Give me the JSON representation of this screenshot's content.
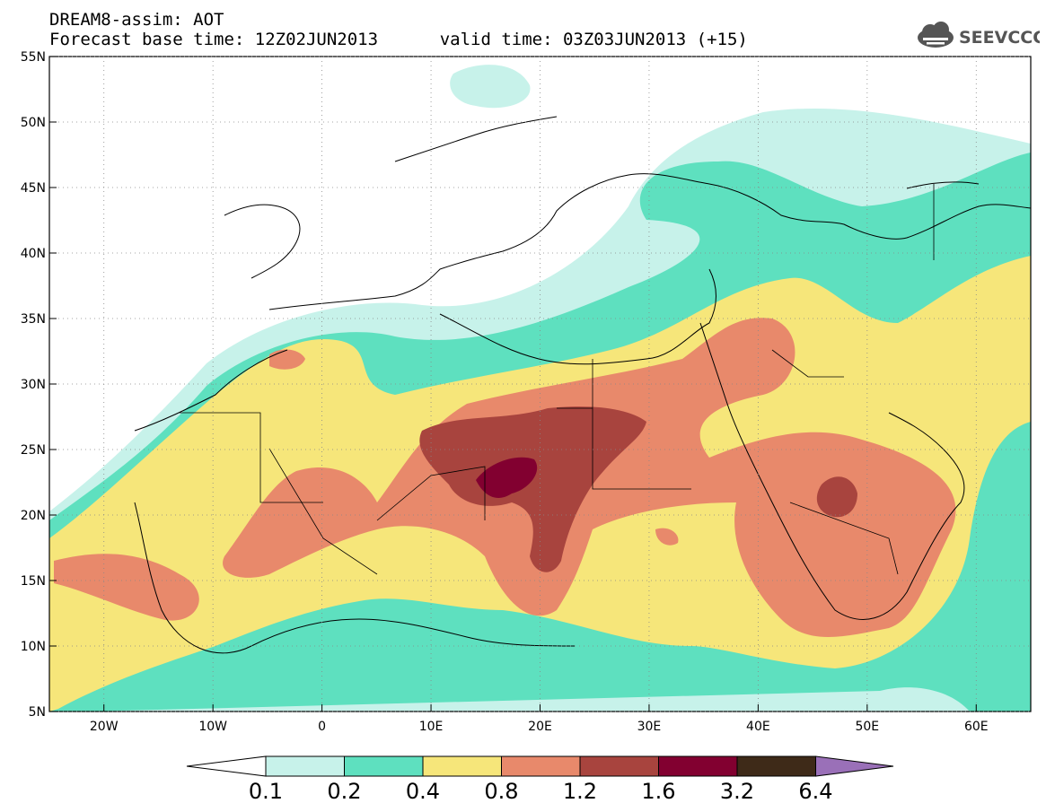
{
  "header": {
    "title": "DREAM8-assim: AOT",
    "forecast_base": "Forecast base time: 12Z02JUN2013",
    "valid_time": "valid time: 03Z03JUN2013 (+15)"
  },
  "logo": {
    "text": "SEEVCCC",
    "icon": "cloud-icon"
  },
  "map": {
    "lon_range": [
      -25,
      65
    ],
    "lat_range": [
      5,
      55
    ],
    "lon_ticks": [
      {
        "value": -20,
        "label": "20W"
      },
      {
        "value": -10,
        "label": "10W"
      },
      {
        "value": 0,
        "label": "0"
      },
      {
        "value": 10,
        "label": "10E"
      },
      {
        "value": 20,
        "label": "20E"
      },
      {
        "value": 30,
        "label": "30E"
      },
      {
        "value": 40,
        "label": "40E"
      },
      {
        "value": 50,
        "label": "50E"
      },
      {
        "value": 60,
        "label": "60E"
      }
    ],
    "lat_ticks": [
      {
        "value": 5,
        "label": "5N"
      },
      {
        "value": 10,
        "label": "10N"
      },
      {
        "value": 15,
        "label": "15N"
      },
      {
        "value": 20,
        "label": "20N"
      },
      {
        "value": 25,
        "label": "25N"
      },
      {
        "value": 30,
        "label": "30N"
      },
      {
        "value": 35,
        "label": "35N"
      },
      {
        "value": 40,
        "label": "40N"
      },
      {
        "value": 45,
        "label": "45N"
      },
      {
        "value": 50,
        "label": "50N"
      },
      {
        "value": 55,
        "label": "55N"
      }
    ],
    "grid": "dotted"
  },
  "colorbar": {
    "labels": [
      "0.1",
      "0.2",
      "0.4",
      "0.8",
      "1.2",
      "1.6",
      "3.2",
      "6.4"
    ],
    "colors": [
      "#ffffff",
      "#c7f2ea",
      "#5ee0bf",
      "#f6e67a",
      "#e8896b",
      "#a8443e",
      "#820030",
      "#3e2a18",
      "#9a70b8"
    ]
  },
  "levels": {
    "c1": "#c7f2ea",
    "c2": "#5ee0bf",
    "c3": "#f6e67a",
    "c4": "#e8896b",
    "c5": "#a8443e",
    "c6": "#820030"
  }
}
